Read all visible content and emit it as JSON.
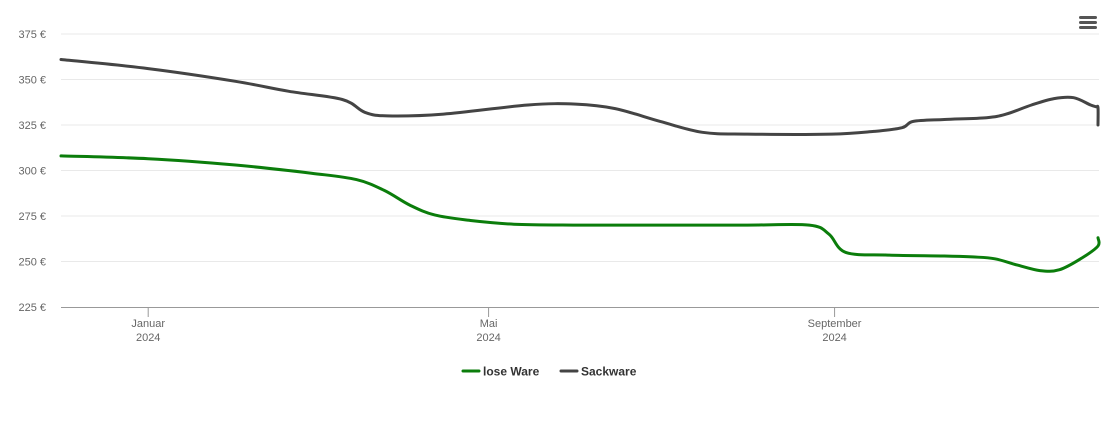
{
  "menu": {
    "icon": "hamburger-menu-icon"
  },
  "chart_data": {
    "type": "line",
    "ylim": [
      225,
      375
    ],
    "y_ticks": [
      {
        "value": 225,
        "label": "225 €"
      },
      {
        "value": 250,
        "label": "250 €"
      },
      {
        "value": 275,
        "label": "275 €"
      },
      {
        "value": 300,
        "label": "300 €"
      },
      {
        "value": 325,
        "label": "325 €"
      },
      {
        "value": 350,
        "label": "350 €"
      },
      {
        "value": 375,
        "label": "375 €"
      }
    ],
    "xlim": [
      "2023-12-01",
      "2024-12-04"
    ],
    "x_ticks": [
      {
        "date": "2024-01-01",
        "line1": "Januar",
        "line2": "2024"
      },
      {
        "date": "2024-05-01",
        "line1": "Mai",
        "line2": "2024"
      },
      {
        "date": "2024-09-01",
        "line1": "September",
        "line2": "2024"
      }
    ],
    "grid": true,
    "legend_position": "bottom-center",
    "series": [
      {
        "name": "lose Ware",
        "color": "#0b7d0b",
        "points": [
          [
            "2023-12-01",
            308
          ],
          [
            "2024-01-01",
            306.5
          ],
          [
            "2024-02-01",
            303
          ],
          [
            "2024-02-28",
            298.5
          ],
          [
            "2024-03-15",
            295
          ],
          [
            "2024-03-25",
            289
          ],
          [
            "2024-04-03",
            281
          ],
          [
            "2024-04-12",
            275.5
          ],
          [
            "2024-04-25",
            272.5
          ],
          [
            "2024-05-10",
            270.5
          ],
          [
            "2024-06-01",
            270
          ],
          [
            "2024-07-01",
            270
          ],
          [
            "2024-08-01",
            270
          ],
          [
            "2024-08-23",
            270
          ],
          [
            "2024-08-30",
            265
          ],
          [
            "2024-09-05",
            255
          ],
          [
            "2024-09-20",
            253.5
          ],
          [
            "2024-10-10",
            253
          ],
          [
            "2024-10-20",
            252.5
          ],
          [
            "2024-10-28",
            251.5
          ],
          [
            "2024-11-05",
            248
          ],
          [
            "2024-11-13",
            245
          ],
          [
            "2024-11-20",
            245.5
          ],
          [
            "2024-11-28",
            252
          ],
          [
            "2024-12-04",
            258.5
          ],
          [
            "2024-12-04",
            263
          ]
        ]
      },
      {
        "name": "Sackware",
        "color": "#444444",
        "points": [
          [
            "2023-12-01",
            361
          ],
          [
            "2024-01-01",
            356
          ],
          [
            "2024-02-01",
            349
          ],
          [
            "2024-02-20",
            343.5
          ],
          [
            "2024-03-10",
            339
          ],
          [
            "2024-03-18",
            332
          ],
          [
            "2024-03-26",
            330
          ],
          [
            "2024-04-15",
            331
          ],
          [
            "2024-05-15",
            336
          ],
          [
            "2024-06-01",
            336.5
          ],
          [
            "2024-06-15",
            334
          ],
          [
            "2024-07-01",
            327
          ],
          [
            "2024-07-16",
            321
          ],
          [
            "2024-08-01",
            320
          ],
          [
            "2024-08-31",
            320
          ],
          [
            "2024-09-15",
            321.5
          ],
          [
            "2024-09-25",
            323.5
          ],
          [
            "2024-09-29",
            327
          ],
          [
            "2024-10-10",
            328
          ],
          [
            "2024-10-25",
            329
          ],
          [
            "2024-11-01",
            331
          ],
          [
            "2024-11-10",
            336
          ],
          [
            "2024-11-18",
            339.5
          ],
          [
            "2024-11-25",
            340
          ],
          [
            "2024-12-01",
            336
          ],
          [
            "2024-12-03",
            335
          ],
          [
            "2024-12-04",
            334.5
          ],
          [
            "2024-12-04",
            325
          ]
        ]
      }
    ]
  }
}
